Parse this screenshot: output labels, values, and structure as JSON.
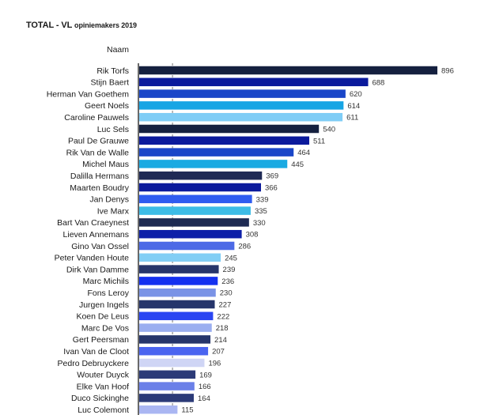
{
  "title_main": "TOTAL - VL",
  "title_sub": "opiniemakers 2019",
  "chart_data": {
    "type": "bar",
    "orientation": "horizontal",
    "column_header": "Naam",
    "xlim": [
      0,
      896
    ],
    "reference_line": 100,
    "categories": [
      "Rik Torfs",
      "Stijn Baert",
      "Herman Van Goethem",
      "Geert Noels",
      "Caroline Pauwels",
      "Luc Sels",
      "Paul De Grauwe",
      "Rik Van de Walle",
      "Michel Maus",
      "Dalilla Hermans",
      "Maarten Boudry",
      "Jan Denys",
      "Ive Marx",
      "Bart Van Craeynest",
      "Lieven Annemans",
      "Gino Van Ossel",
      "Peter Vanden Houte",
      "Dirk Van Damme",
      "Marc Michils",
      "Fons Leroy",
      "Jurgen Ingels",
      "Koen De Leus",
      "Marc De Vos",
      "Gert Peersman",
      "Ivan Van de Cloot",
      "Pedro Debruyckere",
      "Wouter Duyck",
      "Elke Van Hoof",
      "Duco Sickinghe",
      "Luc Colemont"
    ],
    "values": [
      896,
      688,
      620,
      614,
      611,
      540,
      511,
      464,
      445,
      369,
      366,
      339,
      335,
      330,
      308,
      286,
      245,
      239,
      236,
      230,
      227,
      222,
      218,
      214,
      207,
      196,
      169,
      166,
      164,
      115
    ],
    "colors": [
      "#15203f",
      "#0b1a9c",
      "#1a46c8",
      "#17a5e4",
      "#7fcdf6",
      "#15203f",
      "#0b1a9c",
      "#1a46c8",
      "#1aaae2",
      "#1f2a55",
      "#0b1a9c",
      "#2f5cf0",
      "#3cbce6",
      "#1d2a52",
      "#0d1fa8",
      "#4d6ae6",
      "#82cef5",
      "#26356b",
      "#1330f0",
      "#7a93e6",
      "#26356b",
      "#2a45f2",
      "#9aaef0",
      "#26356b",
      "#4a64f0",
      "#cfd5f5",
      "#2c3b78",
      "#6b80e8",
      "#2c3b78",
      "#aab6f2"
    ]
  }
}
